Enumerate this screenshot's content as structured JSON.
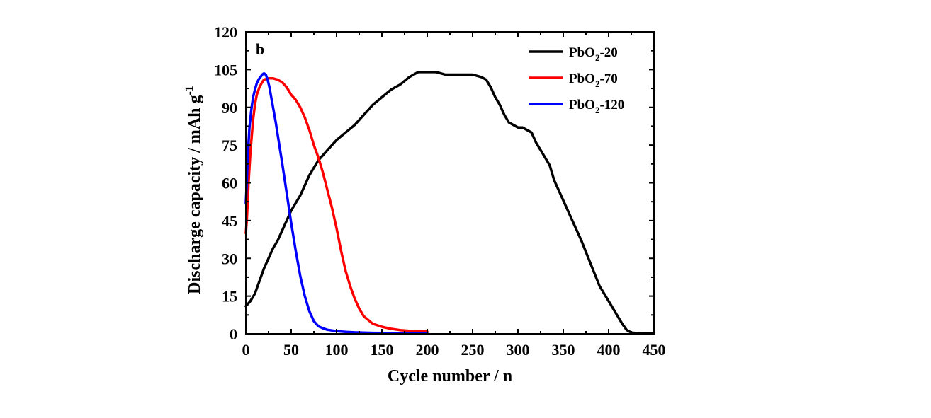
{
  "chart_data": {
    "type": "line",
    "panel_label": "b",
    "xlabel": "Cycle number / n",
    "ylabel": "Discharge capacity / mAh g",
    "ylabel_sup": "-1",
    "xlim": [
      0,
      450
    ],
    "ylim": [
      0,
      120
    ],
    "xticks": [
      "0",
      "50",
      "100",
      "150",
      "200",
      "250",
      "300",
      "350",
      "400",
      "450"
    ],
    "yticks": [
      "0",
      "15",
      "30",
      "45",
      "60",
      "75",
      "90",
      "105",
      "120"
    ],
    "grid": false,
    "legend_position": "top-right",
    "series": [
      {
        "name_parts": [
          "PbO",
          "2",
          "-20"
        ],
        "color": "#000000",
        "x": [
          0,
          5,
          10,
          15,
          20,
          25,
          30,
          35,
          40,
          45,
          50,
          55,
          60,
          65,
          70,
          75,
          80,
          85,
          90,
          95,
          100,
          110,
          120,
          130,
          140,
          150,
          160,
          170,
          180,
          190,
          200,
          210,
          220,
          230,
          240,
          250,
          260,
          265,
          270,
          275,
          280,
          285,
          290,
          295,
          300,
          305,
          310,
          315,
          320,
          325,
          330,
          335,
          340,
          350,
          360,
          370,
          380,
          390,
          400,
          410,
          415,
          420,
          425,
          430,
          440,
          450
        ],
        "y": [
          11,
          13,
          16,
          21,
          26,
          30,
          34,
          37,
          41,
          45,
          49,
          52,
          55,
          59,
          63,
          66,
          69,
          71,
          73,
          75,
          77,
          80,
          83,
          87,
          91,
          94,
          97,
          99,
          102,
          104,
          104,
          104,
          103,
          103,
          103,
          103,
          102,
          101,
          98,
          94,
          91,
          87,
          84,
          83,
          82,
          82,
          81,
          80,
          76,
          73,
          70,
          67,
          61,
          53,
          45,
          37,
          28,
          19,
          13,
          7,
          4,
          1.5,
          0.5,
          0.3,
          0.2,
          0.2
        ]
      },
      {
        "name_parts": [
          "PbO",
          "2",
          "-70"
        ],
        "color": "#ff0000",
        "x": [
          0,
          1,
          2,
          3,
          5,
          8,
          10,
          12,
          15,
          18,
          20,
          25,
          30,
          35,
          40,
          45,
          50,
          55,
          60,
          65,
          70,
          75,
          80,
          85,
          90,
          95,
          100,
          105,
          110,
          115,
          120,
          125,
          130,
          140,
          150,
          160,
          170,
          180,
          190,
          200
        ],
        "y": [
          40,
          45,
          52,
          60,
          72,
          85,
          91,
          95,
          98,
          100,
          101,
          101.5,
          101.5,
          101,
          100,
          98,
          95,
          93,
          90,
          86,
          81,
          75,
          70,
          64,
          57,
          50,
          42,
          33,
          25,
          19,
          14,
          10,
          7,
          4,
          2.8,
          2,
          1.5,
          1.2,
          1,
          0.9
        ]
      },
      {
        "name_parts": [
          "PbO",
          "2",
          "-120"
        ],
        "color": "#0000ff",
        "x": [
          0,
          1,
          2,
          4,
          6,
          8,
          10,
          12,
          14,
          16,
          18,
          20,
          22,
          24,
          26,
          28,
          30,
          33,
          36,
          40,
          45,
          50,
          55,
          60,
          65,
          70,
          75,
          80,
          85,
          90,
          100,
          110,
          120,
          140,
          160,
          180,
          200
        ],
        "y": [
          52,
          60,
          70,
          82,
          89,
          94,
          97,
          99.5,
          101,
          102,
          103,
          103.5,
          103,
          101,
          98,
          94,
          90,
          84,
          77,
          68,
          56,
          44,
          33,
          23,
          15,
          9,
          5,
          3,
          2.2,
          1.6,
          1.1,
          0.8,
          0.6,
          0.4,
          0.3,
          0.3,
          0.3
        ]
      }
    ]
  }
}
